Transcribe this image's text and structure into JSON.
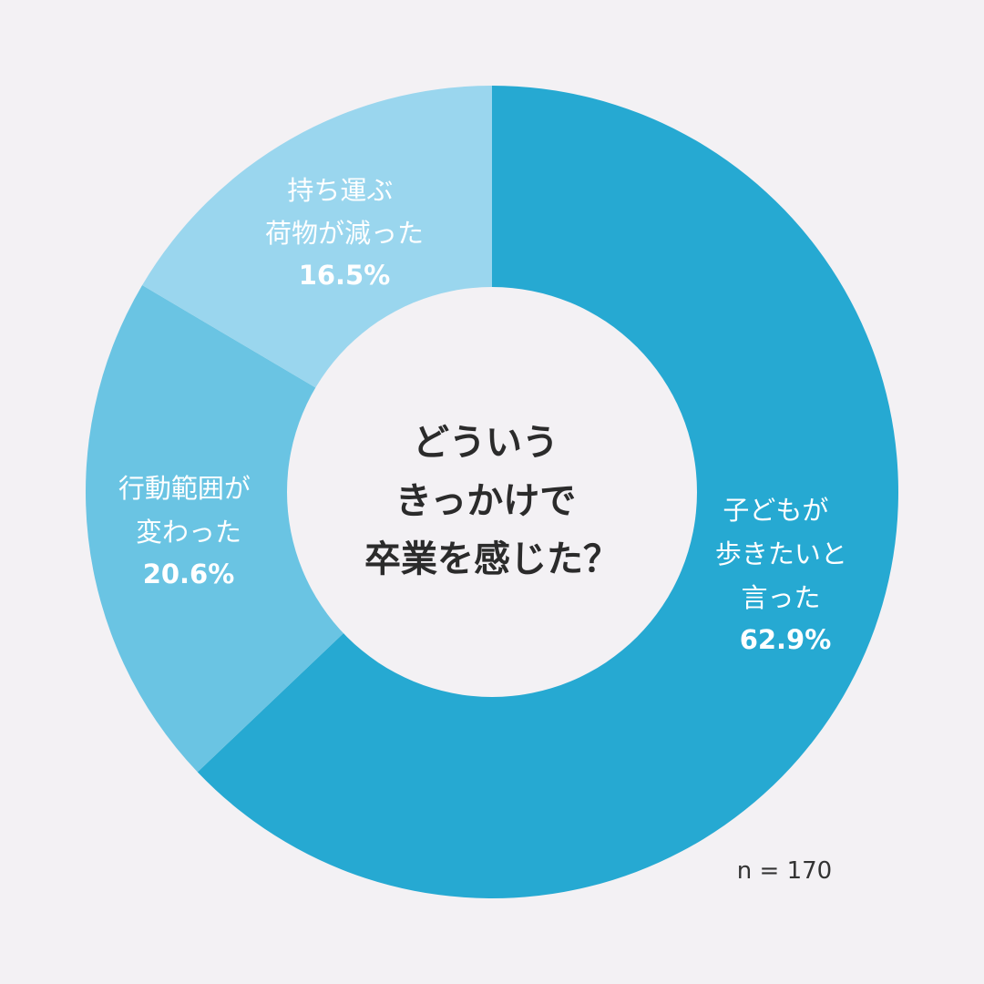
{
  "chart_data": {
    "type": "pie",
    "title_lines": [
      "どういう",
      "きっかけで",
      "卒業を感じた？"
    ],
    "categories": [
      "子どもが歩きたいと言った",
      "行動範囲が変わった",
      "持ち運ぶ荷物が減った"
    ],
    "values": [
      62.9,
      20.6,
      16.5
    ],
    "slices": [
      {
        "label_lines": [
          "子どもが",
          "歩きたいと",
          "言った"
        ],
        "value": 62.9,
        "value_label": "62.9%",
        "color": "#26a9d2"
      },
      {
        "label_lines": [
          "行動範囲が",
          "変わった"
        ],
        "value": 20.6,
        "value_label": "20.6%",
        "color": "#6ac4e3"
      },
      {
        "label_lines": [
          "持ち運ぶ",
          "荷物が減った"
        ],
        "value": 16.5,
        "value_label": "16.5%",
        "color": "#9ad6ee"
      }
    ],
    "sample_size": "n = 170",
    "legend": "none"
  },
  "colors": {
    "background": "#f3f1f4",
    "hole": "#f3f1f4"
  }
}
